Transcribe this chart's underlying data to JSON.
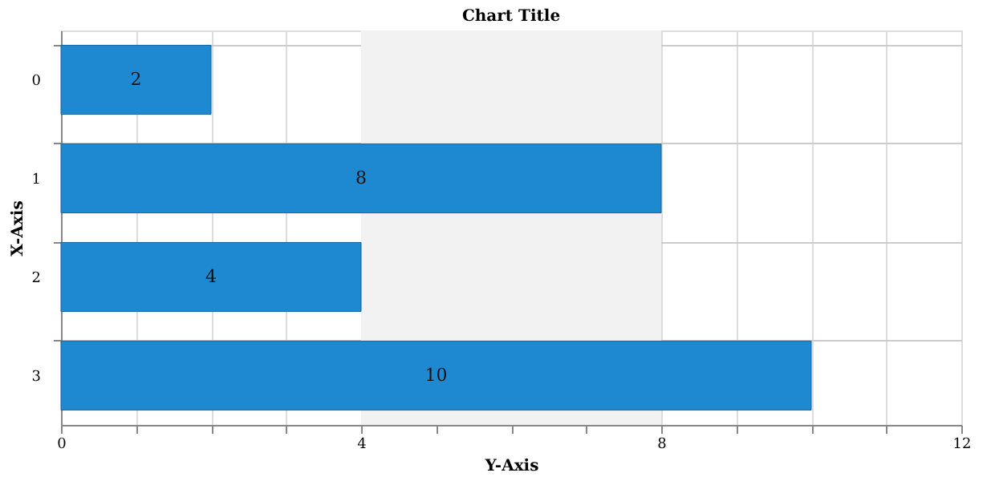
{
  "chart_data": {
    "type": "bar",
    "orientation": "horizontal",
    "title": "Chart Title",
    "xlabel": "Y-Axis",
    "ylabel": "X-Axis",
    "categories": [
      "0",
      "1",
      "2",
      "3"
    ],
    "values": [
      2,
      8,
      4,
      10
    ],
    "color": "#1e88d0",
    "data_labels": true,
    "xlim": [
      0,
      12
    ],
    "xticks": [
      0,
      {
        "value": 1,
        "label": null
      },
      {
        "value": 2,
        "label": null
      },
      {
        "value": 3,
        "label": null
      },
      4,
      {
        "value": 5,
        "label": null
      },
      {
        "value": 6,
        "label": null
      },
      {
        "value": 7,
        "label": null
      },
      8,
      {
        "value": 9,
        "label": null
      },
      {
        "value": 10,
        "label": null
      },
      {
        "value": 11,
        "label": null
      },
      12
    ],
    "bands": [
      {
        "axis": "x",
        "from": 4,
        "to": 8,
        "color": "#f2f2f2"
      }
    ],
    "grid": true
  }
}
